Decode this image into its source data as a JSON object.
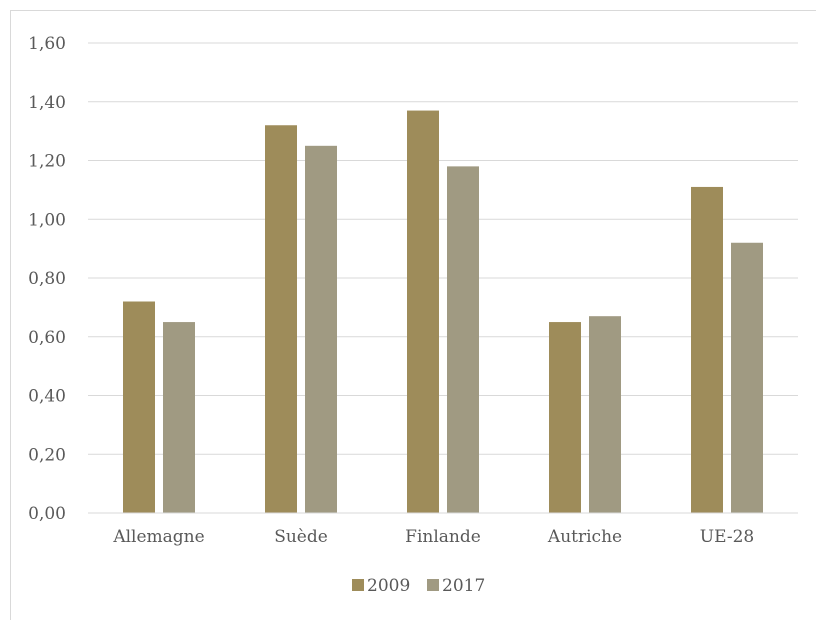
{
  "chart_data": {
    "type": "bar",
    "title": "",
    "xlabel": "",
    "ylabel": "",
    "categories": [
      "Allemagne",
      "Suède",
      "Finlande",
      "Autriche",
      "UE-28"
    ],
    "series": [
      {
        "name": "2009",
        "color": "#9e8c5a",
        "values": [
          0.72,
          1.32,
          1.37,
          0.65,
          1.11
        ]
      },
      {
        "name": "2017",
        "color": "#a09a82",
        "values": [
          0.65,
          1.25,
          1.18,
          0.67,
          0.92
        ]
      }
    ],
    "ylim": [
      0,
      1.6
    ],
    "yticks": [
      "0,00",
      "0,20",
      "0,40",
      "0,60",
      "0,80",
      "1,00",
      "1,20",
      "1,40",
      "1,60"
    ],
    "grid": true,
    "legend_position": "bottom"
  }
}
